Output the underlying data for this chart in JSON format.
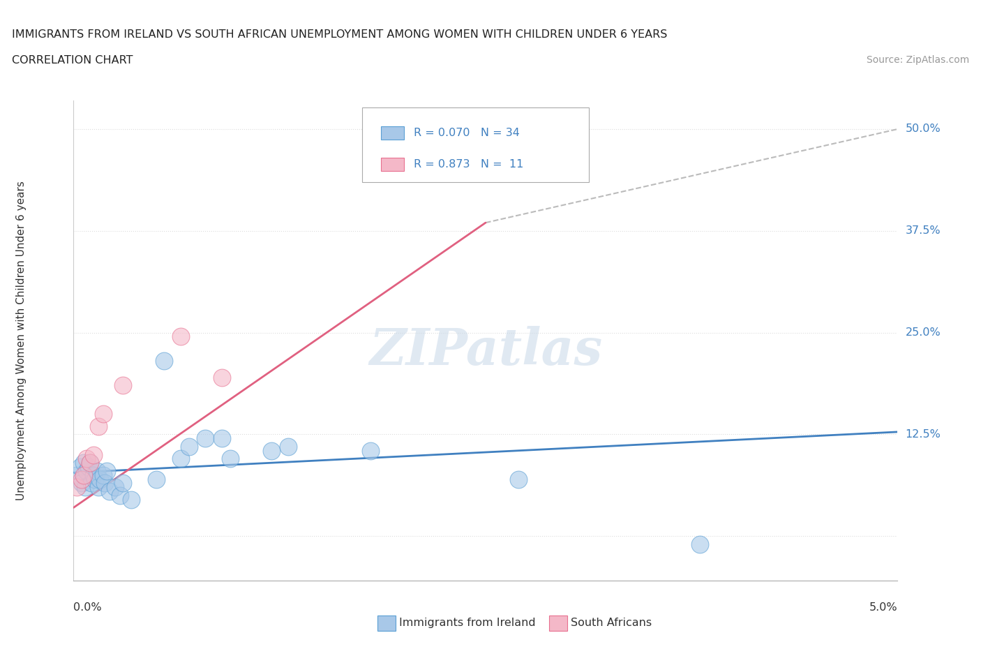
{
  "title_line1": "IMMIGRANTS FROM IRELAND VS SOUTH AFRICAN UNEMPLOYMENT AMONG WOMEN WITH CHILDREN UNDER 6 YEARS",
  "title_line2": "CORRELATION CHART",
  "source": "Source: ZipAtlas.com",
  "ylabel": "Unemployment Among Women with Children Under 6 years",
  "ytick_vals": [
    0.0,
    0.125,
    0.25,
    0.375,
    0.5
  ],
  "ytick_labels": [
    "",
    "12.5%",
    "25.0%",
    "37.5%",
    "50.0%"
  ],
  "xmin": 0.0,
  "xmax": 0.05,
  "ymin": -0.055,
  "ymax": 0.535,
  "legend_r1": "R = 0.070",
  "legend_n1": "N = 34",
  "legend_r2": "R = 0.873",
  "legend_n2": "N =  11",
  "color_blue_fill": "#a8c8e8",
  "color_blue_edge": "#5a9fd4",
  "color_pink_fill": "#f4b8c8",
  "color_pink_edge": "#e87090",
  "color_blue_line": "#4080c0",
  "color_pink_line": "#e06080",
  "color_gray_line": "#bbbbbb",
  "color_grid": "#dddddd",
  "background_color": "#ffffff",
  "watermark": "ZIPatlas",
  "blue_x": [
    0.0002,
    0.0004,
    0.0005,
    0.0006,
    0.0007,
    0.0008,
    0.0009,
    0.001,
    0.0011,
    0.0012,
    0.0013,
    0.0014,
    0.0015,
    0.0016,
    0.0018,
    0.0019,
    0.002,
    0.0022,
    0.0025,
    0.0028,
    0.003,
    0.0035,
    0.005,
    0.0055,
    0.0065,
    0.007,
    0.008,
    0.009,
    0.0095,
    0.012,
    0.013,
    0.018,
    0.027,
    0.038
  ],
  "blue_y": [
    0.075,
    0.085,
    0.065,
    0.09,
    0.06,
    0.08,
    0.085,
    0.09,
    0.065,
    0.075,
    0.07,
    0.08,
    0.06,
    0.07,
    0.075,
    0.065,
    0.08,
    0.055,
    0.06,
    0.05,
    0.065,
    0.045,
    0.07,
    0.215,
    0.095,
    0.11,
    0.12,
    0.12,
    0.095,
    0.105,
    0.11,
    0.105,
    0.07,
    -0.01
  ],
  "pink_x": [
    0.0002,
    0.0005,
    0.0006,
    0.0008,
    0.001,
    0.0012,
    0.0015,
    0.0018,
    0.003,
    0.0065,
    0.009
  ],
  "pink_y": [
    0.06,
    0.07,
    0.075,
    0.095,
    0.09,
    0.1,
    0.135,
    0.15,
    0.185,
    0.245,
    0.195
  ],
  "blue_line_x": [
    0.0,
    0.05
  ],
  "blue_line_y": [
    0.078,
    0.128
  ],
  "pink_line_x": [
    0.0,
    0.025
  ],
  "pink_line_y": [
    0.035,
    0.385
  ],
  "gray_line_x": [
    0.025,
    0.05
  ],
  "gray_line_y": [
    0.385,
    0.5
  ]
}
